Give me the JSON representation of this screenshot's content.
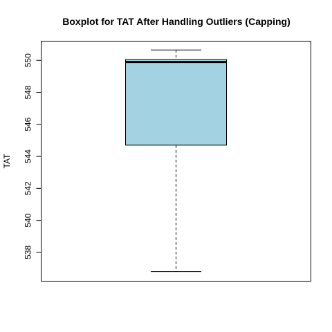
{
  "chart_data": {
    "type": "boxplot",
    "title": "Boxplot for TAT After Handling Outliers (Capping)",
    "xlabel": "",
    "ylabel": "TAT",
    "ylim": [
      536.2,
      551.2
    ],
    "yticks": [
      538,
      540,
      542,
      544,
      546,
      548,
      550
    ],
    "ytick_labels": [
      "538",
      "540",
      "542",
      "544",
      "546",
      "548",
      "550"
    ],
    "boxes": [
      {
        "whisker_low": 536.8,
        "q1": 544.7,
        "median": 549.9,
        "q3": 550.05,
        "whisker_high": 550.65
      }
    ],
    "colors": {
      "box_fill": "#a3d2e2",
      "line": "#000000"
    }
  }
}
